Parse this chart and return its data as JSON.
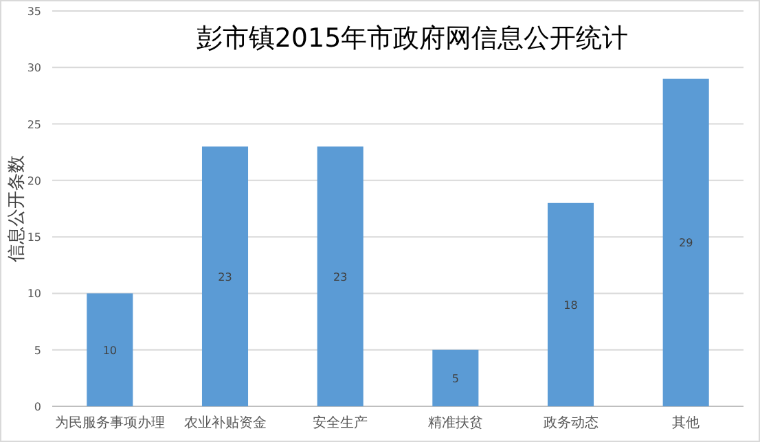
{
  "chart_data": {
    "type": "bar",
    "title": "彭市镇2015年市政府网信息公开统计",
    "ylabel": "信息公开条数",
    "categories": [
      "为民服务事项办理",
      "农业补贴资金",
      "安全生产",
      "精准扶贫",
      "政务动态",
      "其他"
    ],
    "values": [
      10,
      23,
      23,
      5,
      18,
      29
    ],
    "color": "#5b9bd5",
    "ylim": [
      0,
      35
    ],
    "yticks": [
      0,
      5,
      10,
      15,
      20,
      25,
      30,
      35
    ],
    "grid": "y",
    "data_labels": true
  }
}
